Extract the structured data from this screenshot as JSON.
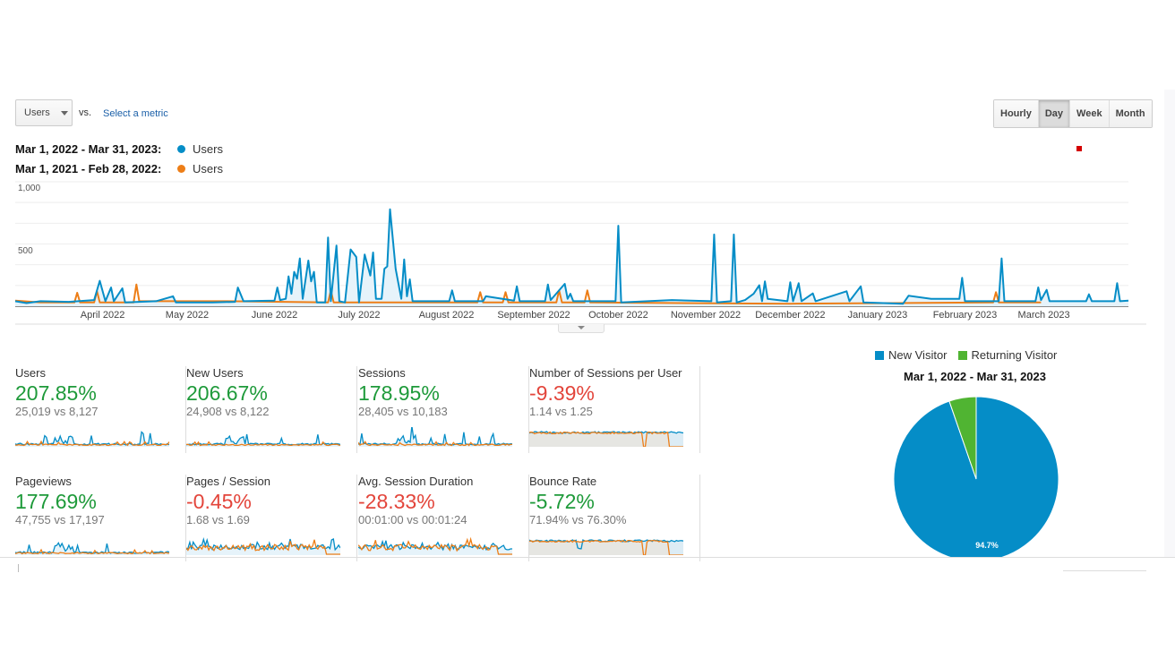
{
  "toolbar": {
    "metric_select": "Users",
    "vs_label": "vs.",
    "select_metric_link": "Select a metric",
    "granularity": [
      {
        "label": "Hourly",
        "active": false
      },
      {
        "label": "Day",
        "active": true
      },
      {
        "label": "Week",
        "active": false
      },
      {
        "label": "Month",
        "active": false
      }
    ]
  },
  "legend": [
    {
      "range": "Mar 1, 2022 - Mar 31, 2023:",
      "metric": "Users",
      "color": "#058dc7"
    },
    {
      "range": "Mar 1, 2021 - Feb 28, 2022:",
      "metric": "Users",
      "color": "#ed7e17"
    }
  ],
  "chart_data": [
    {
      "type": "line",
      "ylim": [
        0,
        1000
      ],
      "yticks": [
        "1,000",
        "500"
      ],
      "xticks": [
        "April 2022",
        "May 2022",
        "June 2022",
        "July 2022",
        "August 2022",
        "September 2022",
        "October 2022",
        "November 2022",
        "December 2022",
        "January 2023",
        "February 2023",
        "March 2023"
      ],
      "grid": true,
      "series": [
        {
          "name": "Users",
          "range": "Mar 1, 2022 - Mar 31, 2023",
          "color": "#058dc7",
          "area": true,
          "points": [
            [
              "2022-03-01",
              40
            ],
            [
              "2022-03-05",
              25
            ],
            [
              "2022-03-10",
              40
            ],
            [
              "2022-03-20",
              35
            ],
            [
              "2022-03-29",
              50
            ],
            [
              "2022-03-31",
              204
            ],
            [
              "2022-04-02",
              40
            ],
            [
              "2022-04-04",
              150
            ],
            [
              "2022-04-05",
              40
            ],
            [
              "2022-04-08",
              144
            ],
            [
              "2022-04-09",
              30
            ],
            [
              "2022-04-20",
              40
            ],
            [
              "2022-04-26",
              80
            ],
            [
              "2022-04-27",
              30
            ],
            [
              "2022-05-10",
              30
            ],
            [
              "2022-05-18",
              35
            ],
            [
              "2022-05-19",
              150
            ],
            [
              "2022-05-21",
              40
            ],
            [
              "2022-06-01",
              45
            ],
            [
              "2022-06-02",
              150
            ],
            [
              "2022-06-03",
              50
            ],
            [
              "2022-06-05",
              60
            ],
            [
              "2022-06-06",
              240
            ],
            [
              "2022-06-07",
              100
            ],
            [
              "2022-06-08",
              276
            ],
            [
              "2022-06-09",
              220
            ],
            [
              "2022-06-10",
              384
            ],
            [
              "2022-06-11",
              60
            ],
            [
              "2022-06-13",
              367
            ],
            [
              "2022-06-14",
              200
            ],
            [
              "2022-06-15",
              276
            ],
            [
              "2022-06-16",
              30
            ],
            [
              "2022-06-19",
              30
            ],
            [
              "2022-06-20",
              552
            ],
            [
              "2022-06-21",
              40
            ],
            [
              "2022-06-23",
              487
            ],
            [
              "2022-06-24",
              40
            ],
            [
              "2022-06-26",
              30
            ],
            [
              "2022-06-28",
              456
            ],
            [
              "2022-06-30",
              396
            ],
            [
              "2022-07-01",
              30
            ],
            [
              "2022-07-03",
              415
            ],
            [
              "2022-07-05",
              247
            ],
            [
              "2022-07-06",
              432
            ],
            [
              "2022-07-07",
              60
            ],
            [
              "2022-07-09",
              60
            ],
            [
              "2022-07-10",
              300
            ],
            [
              "2022-07-11",
              320
            ],
            [
              "2022-07-12",
              779
            ],
            [
              "2022-07-14",
              300
            ],
            [
              "2022-07-16",
              60
            ],
            [
              "2022-07-17",
              376
            ],
            [
              "2022-07-18",
              80
            ],
            [
              "2022-07-19",
              216
            ],
            [
              "2022-07-20",
              40
            ],
            [
              "2022-08-02",
              40
            ],
            [
              "2022-08-03",
              127
            ],
            [
              "2022-08-04",
              40
            ],
            [
              "2022-08-14",
              40
            ],
            [
              "2022-08-15",
              80
            ],
            [
              "2022-08-25",
              45
            ],
            [
              "2022-08-26",
              160
            ],
            [
              "2022-08-27",
              40
            ],
            [
              "2022-09-05",
              40
            ],
            [
              "2022-09-06",
              175
            ],
            [
              "2022-09-07",
              50
            ],
            [
              "2022-09-12",
              180
            ],
            [
              "2022-09-13",
              60
            ],
            [
              "2022-09-14",
              100
            ],
            [
              "2022-09-15",
              40
            ],
            [
              "2022-09-30",
              40
            ],
            [
              "2022-10-01",
              647
            ],
            [
              "2022-10-02",
              30
            ],
            [
              "2022-10-20",
              50
            ],
            [
              "2022-11-03",
              40
            ],
            [
              "2022-11-04",
              576
            ],
            [
              "2022-11-05",
              30
            ],
            [
              "2022-11-10",
              40
            ],
            [
              "2022-11-11",
              576
            ],
            [
              "2022-11-12",
              30
            ],
            [
              "2022-11-15",
              50
            ],
            [
              "2022-11-18",
              100
            ],
            [
              "2022-11-20",
              168
            ],
            [
              "2022-11-21",
              40
            ],
            [
              "2022-11-22",
              199
            ],
            [
              "2022-11-23",
              60
            ],
            [
              "2022-11-30",
              40
            ],
            [
              "2022-12-01",
              192
            ],
            [
              "2022-12-02",
              40
            ],
            [
              "2022-12-04",
              185
            ],
            [
              "2022-12-05",
              40
            ],
            [
              "2022-12-09",
              103
            ],
            [
              "2022-12-10",
              40
            ],
            [
              "2022-12-21",
              120
            ],
            [
              "2022-12-22",
              40
            ],
            [
              "2022-12-26",
              160
            ],
            [
              "2022-12-27",
              30
            ],
            [
              "2023-01-10",
              20
            ],
            [
              "2023-01-12",
              84
            ],
            [
              "2023-01-20",
              60
            ],
            [
              "2023-01-30",
              60
            ],
            [
              "2023-01-31",
              228
            ],
            [
              "2023-02-01",
              40
            ],
            [
              "2023-02-13",
              40
            ],
            [
              "2023-02-14",
              384
            ],
            [
              "2023-02-15",
              40
            ],
            [
              "2023-02-26",
              40
            ],
            [
              "2023-02-27",
              151
            ],
            [
              "2023-02-28",
              50
            ],
            [
              "2023-03-02",
              132
            ],
            [
              "2023-03-03",
              40
            ],
            [
              "2023-03-16",
              40
            ],
            [
              "2023-03-17",
              96
            ],
            [
              "2023-03-18",
              40
            ],
            [
              "2023-03-26",
              40
            ],
            [
              "2023-03-27",
              185
            ],
            [
              "2023-03-28",
              40
            ],
            [
              "2023-03-31",
              45
            ]
          ]
        },
        {
          "name": "Users",
          "range": "Mar 1, 2021 - Feb 28, 2022",
          "color": "#ed7e17",
          "area": false,
          "points": [
            [
              "2021-03-01",
              45
            ],
            [
              "2021-03-10",
              30
            ],
            [
              "2021-03-22",
              30
            ],
            [
              "2021-03-23",
              108
            ],
            [
              "2021-03-24",
              30
            ],
            [
              "2021-03-29",
              30
            ],
            [
              "2021-03-30",
              120
            ],
            [
              "2021-03-31",
              30
            ],
            [
              "2021-04-12",
              30
            ],
            [
              "2021-04-13",
              175
            ],
            [
              "2021-04-14",
              40
            ],
            [
              "2021-05-15",
              40
            ],
            [
              "2021-06-20",
              30
            ],
            [
              "2021-06-21",
              127
            ],
            [
              "2021-06-22",
              30
            ],
            [
              "2021-08-12",
              30
            ],
            [
              "2021-08-13",
              113
            ],
            [
              "2021-08-14",
              30
            ],
            [
              "2021-08-21",
              30
            ],
            [
              "2021-08-22",
              113
            ],
            [
              "2021-08-23",
              30
            ],
            [
              "2021-09-09",
              30
            ],
            [
              "2021-09-10",
              127
            ],
            [
              "2021-09-11",
              30
            ],
            [
              "2021-09-19",
              30
            ],
            [
              "2021-09-20",
              127
            ],
            [
              "2021-09-21",
              30
            ],
            [
              "2021-12-01",
              20
            ],
            [
              "2022-02-11",
              30
            ],
            [
              "2022-02-12",
              113
            ],
            [
              "2022-02-13",
              30
            ],
            [
              "2022-02-28",
              30
            ]
          ]
        }
      ]
    },
    {
      "type": "pie",
      "title": "Mar 1, 2022 - Mar 31, 2023",
      "slices": [
        {
          "label": "New Visitor",
          "value": 94.7,
          "color": "#058dc7",
          "data_label": "94.7%"
        },
        {
          "label": "Returning Visitor",
          "value": 5.3,
          "color": "#50b432"
        }
      ]
    }
  ],
  "metrics": [
    {
      "title": "Users",
      "change": "207.85%",
      "trend": "positive",
      "compare": "25,019 vs 8,127",
      "spark": "traffic"
    },
    {
      "title": "New Users",
      "change": "206.67%",
      "trend": "positive",
      "compare": "24,908 vs 8,122",
      "spark": "traffic"
    },
    {
      "title": "Sessions",
      "change": "178.95%",
      "trend": "positive",
      "compare": "28,405 vs 10,183",
      "spark": "traffic"
    },
    {
      "title": "Number of Sessions per User",
      "change": "-9.39%",
      "trend": "negative",
      "compare": "1.14 vs 1.25",
      "spark": "ratio"
    },
    {
      "title": "Pageviews",
      "change": "177.69%",
      "trend": "positive",
      "compare": "47,755 vs 17,197",
      "spark": "traffic"
    },
    {
      "title": "Pages / Session",
      "change": "-0.45%",
      "trend": "negative",
      "compare": "1.68 vs 1.69",
      "spark": "noisy"
    },
    {
      "title": "Avg. Session Duration",
      "change": "-28.33%",
      "trend": "negative",
      "compare": "00:01:00 vs 00:01:24",
      "spark": "noisy"
    },
    {
      "title": "Bounce Rate",
      "change": "-5.72%",
      "trend": "positive",
      "compare": "71.94% vs 76.30%",
      "spark": "ratio"
    }
  ]
}
